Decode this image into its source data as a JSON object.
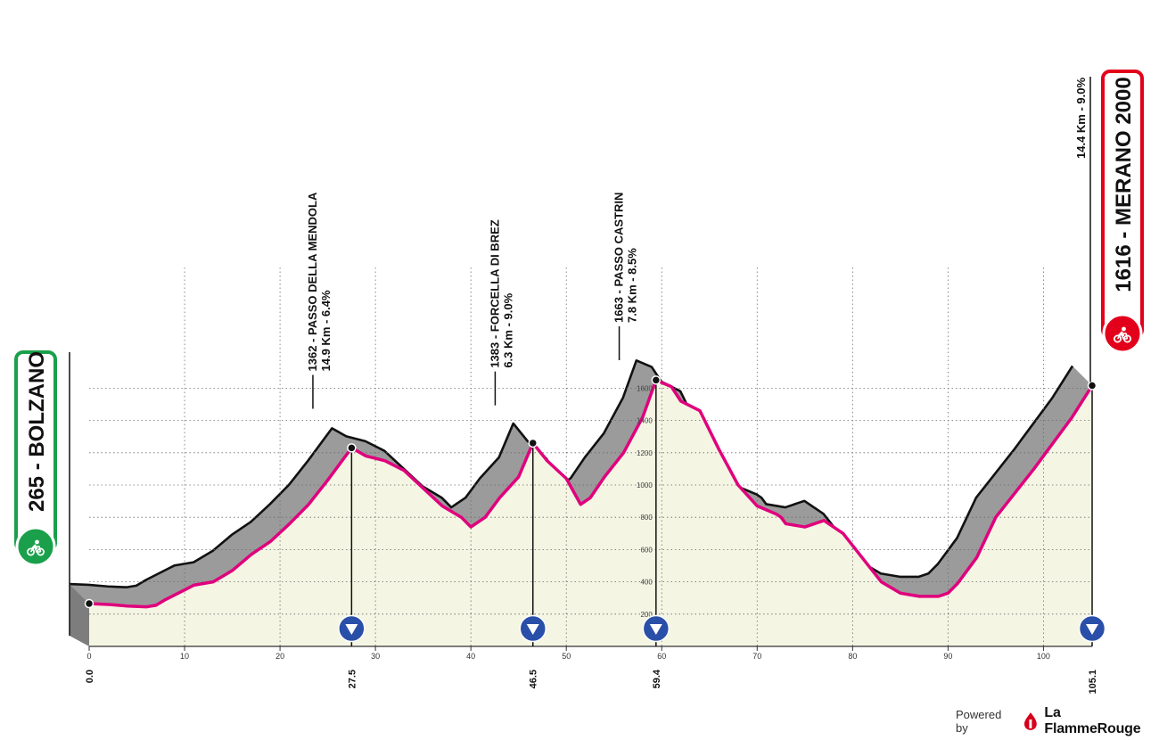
{
  "start": {
    "altitude": "265",
    "name": "BOLZANO",
    "label": "265 - BOLZANO",
    "color": "#1aa04a"
  },
  "finish": {
    "altitude": "1616",
    "name": "MERANO 2000",
    "label": "1616 - MERANO 2000",
    "color": "#e3001b",
    "climb_info": "14.4 Km - 9.0%"
  },
  "climbs": [
    {
      "name": "1362 - PASSO DELLA MENDOLA",
      "info": "14.9 Km - 6.4%",
      "km_top": 25.5,
      "altitude": 1362
    },
    {
      "name": "1383 - FORCELLA DI BREZ",
      "info": "6.3 Km - 9.0%",
      "km_top": 44.6,
      "altitude": 1383
    },
    {
      "name": "1663 - PASSO CASTRIN",
      "info": "7.8 Km - 8.5%",
      "km_top": 57.6,
      "altitude": 1663
    }
  ],
  "markers": [
    {
      "km": 0.0,
      "label": "0.0"
    },
    {
      "km": 27.5,
      "label": "27.5"
    },
    {
      "km": 46.5,
      "label": "46.5"
    },
    {
      "km": 59.4,
      "label": "59.4"
    },
    {
      "km": 105.1,
      "label": "105.1"
    }
  ],
  "chart_data": {
    "type": "area",
    "x_unit": "km",
    "y_unit": "m",
    "xlim": [
      0,
      105.1
    ],
    "ylim": [
      0,
      1800
    ],
    "x_ticks": [
      "0",
      "10",
      "20",
      "30",
      "40",
      "50",
      "60",
      "70",
      "80",
      "90",
      "100"
    ],
    "y_ticks": [
      "200",
      "400",
      "600",
      "800",
      "1000",
      "1200",
      "1400",
      "1600"
    ],
    "grid": true,
    "profile": [
      [
        0,
        265
      ],
      [
        2,
        260
      ],
      [
        4,
        250
      ],
      [
        6,
        245
      ],
      [
        7,
        255
      ],
      [
        8,
        290
      ],
      [
        10,
        350
      ],
      [
        11,
        380
      ],
      [
        13,
        400
      ],
      [
        15,
        470
      ],
      [
        17,
        570
      ],
      [
        19,
        650
      ],
      [
        21,
        760
      ],
      [
        23,
        880
      ],
      [
        25,
        1030
      ],
      [
        27.5,
        1230
      ],
      [
        29,
        1180
      ],
      [
        31,
        1150
      ],
      [
        33,
        1090
      ],
      [
        35,
        980
      ],
      [
        37,
        870
      ],
      [
        39,
        800
      ],
      [
        40,
        740
      ],
      [
        41.5,
        800
      ],
      [
        43,
        920
      ],
      [
        45,
        1050
      ],
      [
        46.5,
        1260
      ],
      [
        48,
        1150
      ],
      [
        50,
        1040
      ],
      [
        51.5,
        880
      ],
      [
        52.5,
        920
      ],
      [
        54,
        1050
      ],
      [
        56,
        1200
      ],
      [
        58,
        1420
      ],
      [
        59.4,
        1650
      ],
      [
        61,
        1610
      ],
      [
        62,
        1520
      ],
      [
        63,
        1490
      ],
      [
        64,
        1460
      ],
      [
        66,
        1220
      ],
      [
        68,
        1000
      ],
      [
        70,
        870
      ],
      [
        72,
        820
      ],
      [
        72.5,
        800
      ],
      [
        73,
        760
      ],
      [
        75,
        740
      ],
      [
        77,
        780
      ],
      [
        79,
        700
      ],
      [
        81,
        550
      ],
      [
        83,
        400
      ],
      [
        85,
        330
      ],
      [
        87,
        310
      ],
      [
        89,
        310
      ],
      [
        90,
        330
      ],
      [
        91,
        390
      ],
      [
        93,
        550
      ],
      [
        95,
        800
      ],
      [
        97,
        950
      ],
      [
        99,
        1100
      ],
      [
        101,
        1260
      ],
      [
        103,
        1420
      ],
      [
        105.1,
        1616
      ]
    ]
  },
  "footer": {
    "powered": "Powered by",
    "brand": "La FlammeRouge"
  }
}
